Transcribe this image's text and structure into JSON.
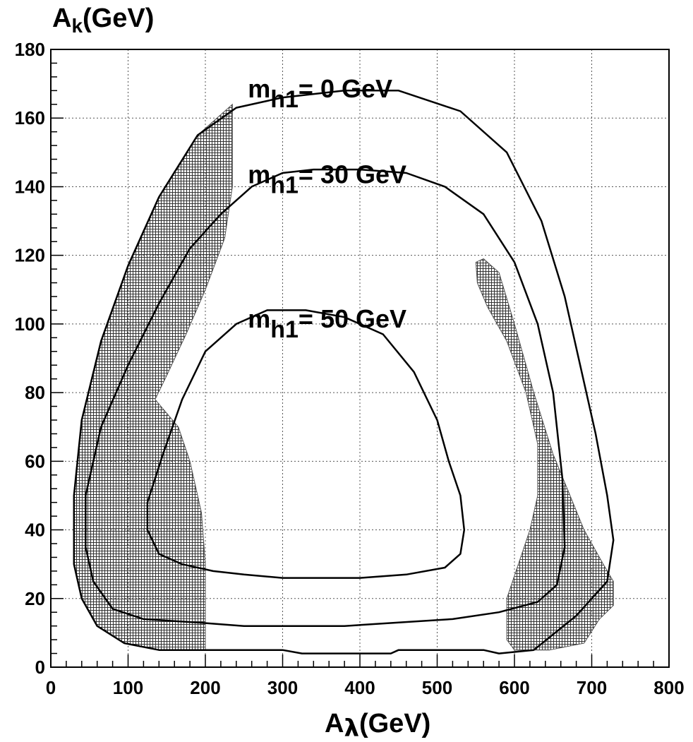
{
  "chart_data": {
    "type": "contour",
    "xlabel": "A",
    "xlabel_sub": "λ",
    "xlabel_unit": "(GeV)",
    "ylabel": "A",
    "ylabel_sub": "k",
    "ylabel_unit": "(GeV)",
    "xlim": [
      0,
      800
    ],
    "ylim": [
      0,
      180
    ],
    "xticks": [
      "0",
      "100",
      "200",
      "300",
      "400",
      "500",
      "600",
      "700",
      "800"
    ],
    "yticks": [
      "0",
      "20",
      "40",
      "60",
      "80",
      "100",
      "120",
      "140",
      "160",
      "180"
    ],
    "grid": true,
    "contours": [
      {
        "label_main": "m",
        "label_sub": "h1",
        "label_rest": "= 0 GeV",
        "label_pos": [
          255,
          166
        ],
        "points": [
          [
            325,
            4
          ],
          [
            440,
            4
          ],
          [
            450,
            5
          ],
          [
            560,
            5
          ],
          [
            580,
            4
          ],
          [
            625,
            5
          ],
          [
            680,
            15
          ],
          [
            720,
            25
          ],
          [
            728,
            37
          ],
          [
            720,
            50
          ],
          [
            705,
            68
          ],
          [
            685,
            88
          ],
          [
            665,
            108
          ],
          [
            635,
            130
          ],
          [
            590,
            150
          ],
          [
            530,
            162
          ],
          [
            450,
            168
          ],
          [
            380,
            168
          ],
          [
            300,
            166
          ],
          [
            240,
            163
          ],
          [
            190,
            155
          ],
          [
            140,
            137
          ],
          [
            100,
            117
          ],
          [
            65,
            95
          ],
          [
            40,
            72
          ],
          [
            30,
            50
          ],
          [
            30,
            30
          ],
          [
            40,
            20
          ],
          [
            60,
            12
          ],
          [
            95,
            7
          ],
          [
            140,
            5
          ],
          [
            200,
            5
          ],
          [
            300,
            5
          ]
        ]
      },
      {
        "label_main": "m",
        "label_sub": "h1",
        "label_rest": "= 30 GeV",
        "label_pos": [
          255,
          141
        ],
        "points": [
          [
            300,
            12
          ],
          [
            380,
            12
          ],
          [
            450,
            13
          ],
          [
            520,
            14
          ],
          [
            580,
            16
          ],
          [
            630,
            19
          ],
          [
            655,
            24
          ],
          [
            665,
            35
          ],
          [
            662,
            55
          ],
          [
            650,
            80
          ],
          [
            630,
            100
          ],
          [
            600,
            118
          ],
          [
            560,
            132
          ],
          [
            510,
            140
          ],
          [
            460,
            144
          ],
          [
            400,
            145
          ],
          [
            340,
            145
          ],
          [
            300,
            144
          ],
          [
            260,
            140
          ],
          [
            220,
            132
          ],
          [
            180,
            122
          ],
          [
            140,
            106
          ],
          [
            100,
            88
          ],
          [
            65,
            70
          ],
          [
            45,
            50
          ],
          [
            45,
            35
          ],
          [
            55,
            25
          ],
          [
            80,
            17
          ],
          [
            120,
            14
          ],
          [
            190,
            13
          ],
          [
            250,
            12
          ]
        ]
      },
      {
        "label_main": "m",
        "label_sub": "h1",
        "label_rest": "= 50 GeV",
        "label_pos": [
          255,
          99
        ],
        "points": [
          [
            250,
            27
          ],
          [
            300,
            26
          ],
          [
            400,
            26
          ],
          [
            460,
            27
          ],
          [
            510,
            29
          ],
          [
            530,
            33
          ],
          [
            535,
            40
          ],
          [
            530,
            50
          ],
          [
            515,
            60
          ],
          [
            500,
            72
          ],
          [
            470,
            86
          ],
          [
            430,
            97
          ],
          [
            380,
            102
          ],
          [
            330,
            104
          ],
          [
            280,
            104
          ],
          [
            240,
            100
          ],
          [
            200,
            92
          ],
          [
            170,
            78
          ],
          [
            145,
            62
          ],
          [
            125,
            48
          ],
          [
            125,
            40
          ],
          [
            140,
            33
          ],
          [
            170,
            30
          ],
          [
            210,
            28
          ]
        ]
      }
    ],
    "shaded_regions": [
      {
        "points": [
          [
            200,
            5
          ],
          [
            140,
            5
          ],
          [
            95,
            7
          ],
          [
            60,
            12
          ],
          [
            40,
            20
          ],
          [
            30,
            30
          ],
          [
            30,
            50
          ],
          [
            40,
            72
          ],
          [
            65,
            95
          ],
          [
            100,
            117
          ],
          [
            140,
            137
          ],
          [
            190,
            155
          ],
          [
            225,
            162
          ],
          [
            235,
            164
          ],
          [
            235,
            140
          ],
          [
            225,
            125
          ],
          [
            200,
            110
          ],
          [
            175,
            97
          ],
          [
            150,
            85
          ],
          [
            135,
            78
          ],
          [
            165,
            70
          ],
          [
            180,
            60
          ],
          [
            195,
            45
          ],
          [
            200,
            30
          ]
        ]
      },
      {
        "points": [
          [
            550,
            118
          ],
          [
            560,
            119
          ],
          [
            580,
            115
          ],
          [
            600,
            100
          ],
          [
            625,
            80
          ],
          [
            650,
            62
          ],
          [
            672,
            50
          ],
          [
            690,
            40
          ],
          [
            715,
            30
          ],
          [
            728,
            25
          ],
          [
            728,
            18
          ],
          [
            710,
            14
          ],
          [
            690,
            7
          ],
          [
            645,
            5
          ],
          [
            600,
            5
          ],
          [
            590,
            8
          ],
          [
            590,
            20
          ],
          [
            605,
            30
          ],
          [
            620,
            40
          ],
          [
            630,
            50
          ],
          [
            630,
            65
          ],
          [
            615,
            80
          ],
          [
            590,
            95
          ],
          [
            565,
            105
          ],
          [
            552,
            112
          ]
        ]
      }
    ]
  }
}
